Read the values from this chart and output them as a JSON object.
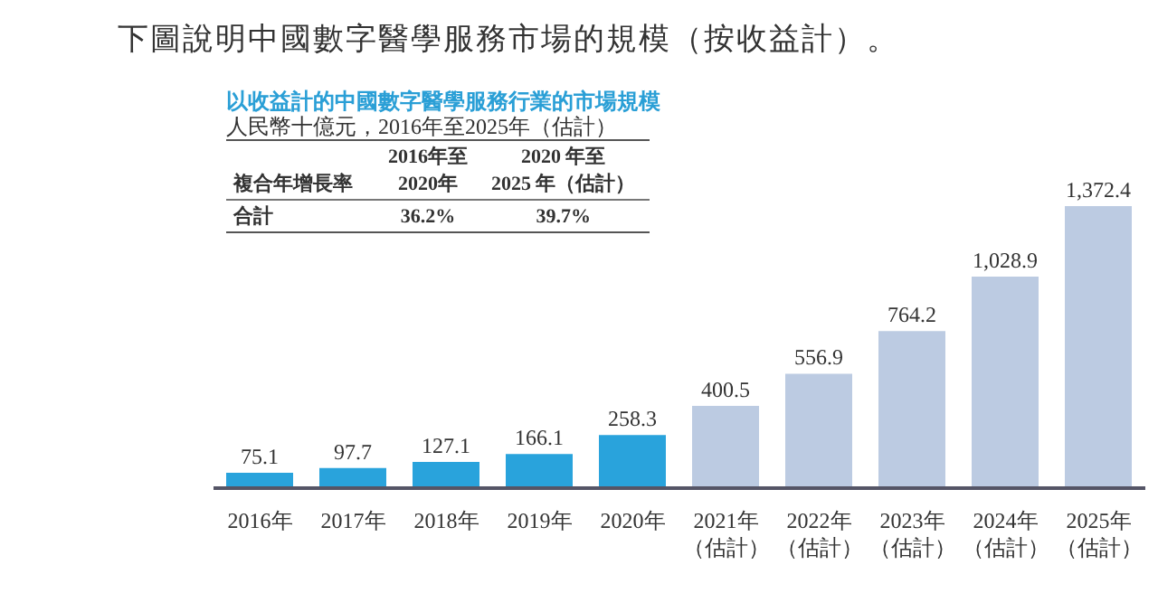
{
  "chart_data": {
    "type": "bar",
    "title": "下圖說明中國數字醫學服務市場的規模（按收益計）。",
    "subtitle": "以收益計的中國數字醫學服務行業的市場規模",
    "ylabel": "人民幣十億元，2016年至2025年（估計）",
    "categories": [
      "2016年",
      "2017年",
      "2018年",
      "2019年",
      "2020年",
      "2021年（估計）",
      "2022年（估計）",
      "2023年（估計）",
      "2024年（估計）",
      "2025年（估計）"
    ],
    "values": [
      75.1,
      97.7,
      127.1,
      166.1,
      258.3,
      400.5,
      556.9,
      764.2,
      1028.9,
      1372.4
    ],
    "colors": [
      "#29a3dc",
      "#29a3dc",
      "#29a3dc",
      "#29a3dc",
      "#29a3dc",
      "#bccbe2",
      "#bccbe2",
      "#bccbe2",
      "#bccbe2",
      "#bccbe2"
    ],
    "value_labels": [
      "75.1",
      "97.7",
      "127.1",
      "166.1",
      "258.3",
      "400.5",
      "556.9",
      "764.2",
      "1,028.9",
      "1,372.4"
    ],
    "annotations": [
      "複合年增長率",
      "2016年至2020年",
      "2020 年至2025 年（估計）",
      "合計",
      "36.2%",
      "39.7%"
    ]
  }
}
